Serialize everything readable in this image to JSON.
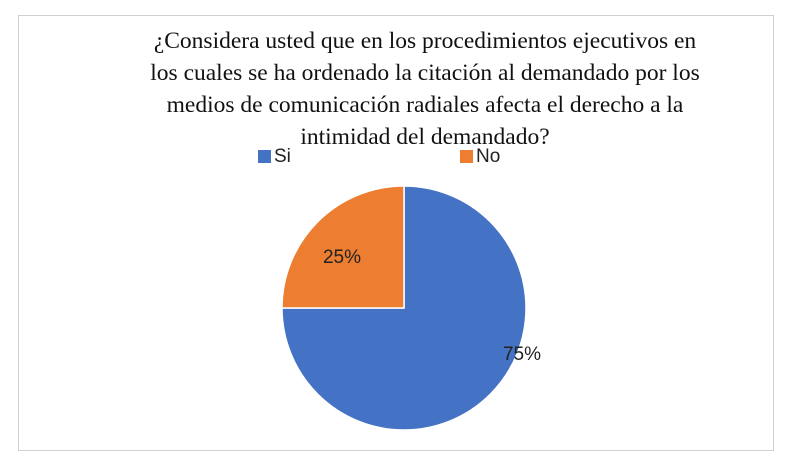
{
  "chart_data": {
    "type": "pie",
    "title": "¿Considera usted que en los procedimientos ejecutivos en los cuales se ha ordenado la citación al demandado por los medios de comunicación radiales afecta el derecho a la intimidad del demandado?",
    "categories": [
      "Si",
      "No"
    ],
    "values": [
      75,
      25
    ],
    "value_labels": [
      "75%",
      "25%"
    ],
    "colors": [
      "#4472c4",
      "#ed7d31"
    ],
    "legend": "top"
  }
}
